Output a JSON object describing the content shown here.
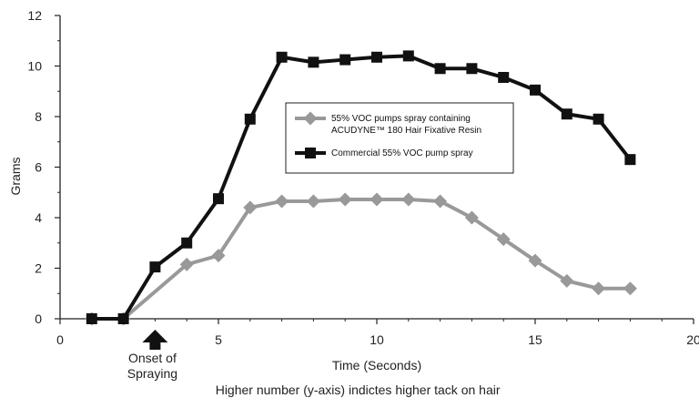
{
  "chart_data": {
    "type": "line",
    "title": "",
    "xlabel": "Time (Seconds)",
    "ylabel": "Grams",
    "xlim": [
      0,
      20
    ],
    "ylim": [
      0,
      12
    ],
    "x_ticks": [
      0,
      5,
      10,
      15,
      20
    ],
    "y_ticks": [
      0,
      2,
      4,
      6,
      8,
      10,
      12
    ],
    "grid": false,
    "legend_position": "top-right (inside plot)",
    "series": [
      {
        "name": "55% VOC pumps spray containing ACUDYNE™ 180 Hair Fixative Resin",
        "legend_lines": [
          "55% VOC pumps spray containing",
          "ACUDYNE™ 180 Hair Fixative Resin"
        ],
        "marker": "diamond",
        "color": "#999999",
        "x": [
          1,
          2,
          4,
          5,
          6,
          7,
          8,
          9,
          10,
          11,
          12,
          13,
          14,
          15,
          16,
          17,
          18
        ],
        "y": [
          0,
          0,
          2.15,
          2.5,
          4.4,
          4.65,
          4.65,
          4.72,
          4.72,
          4.72,
          4.65,
          4.0,
          3.15,
          2.3,
          1.5,
          1.2,
          1.2
        ]
      },
      {
        "name": "Commercial 55% VOC pump spray",
        "legend_lines": [
          "Commercial 55% VOC pump spray"
        ],
        "marker": "square",
        "color": "#111111",
        "x": [
          1,
          2,
          3,
          4,
          5,
          6,
          7,
          8,
          9,
          10,
          11,
          12,
          13,
          14,
          15,
          16,
          17,
          18
        ],
        "y": [
          0,
          0,
          2.05,
          3.0,
          4.75,
          7.9,
          10.35,
          10.15,
          10.25,
          10.35,
          10.4,
          9.9,
          9.9,
          9.55,
          9.05,
          8.1,
          7.9,
          6.3
        ]
      }
    ],
    "annotations": {
      "onset_x": 3,
      "onset_lines": [
        "Onset of",
        "Spraying"
      ],
      "footnote": "Higher number (y-axis) indictes higher tack on hair"
    }
  }
}
